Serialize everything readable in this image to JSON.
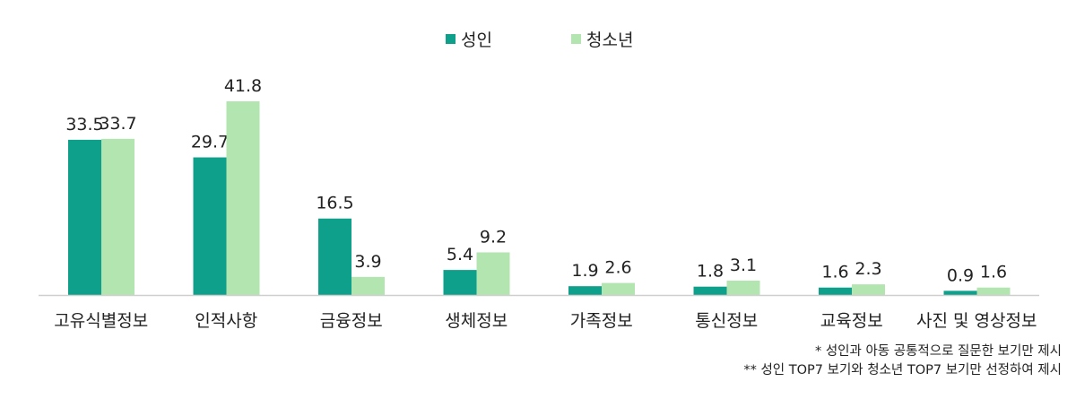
{
  "chart_data": {
    "type": "bar",
    "categories": [
      "고유식별정보",
      "인적사항",
      "금융정보",
      "생체정보",
      "가족정보",
      "통신정보",
      "교육정보",
      "사진 및 영상정보"
    ],
    "series": [
      {
        "name": "성인",
        "values": [
          33.5,
          29.7,
          16.5,
          5.4,
          1.9,
          1.8,
          1.6,
          0.9
        ],
        "color": "#0fa08c"
      },
      {
        "name": "청소년",
        "values": [
          33.7,
          41.8,
          3.9,
          9.2,
          2.6,
          3.1,
          2.3,
          1.6
        ],
        "color": "#b3e5b0"
      }
    ],
    "ylim": [
      0,
      41.8
    ],
    "legend_position": "top-center",
    "grid": false
  },
  "notes": [
    "* 성인과 아동 공통적으로 질문한 보기만 제시",
    "** 성인 TOP7 보기와 청소년 TOP7 보기만 선정하여 제시"
  ]
}
